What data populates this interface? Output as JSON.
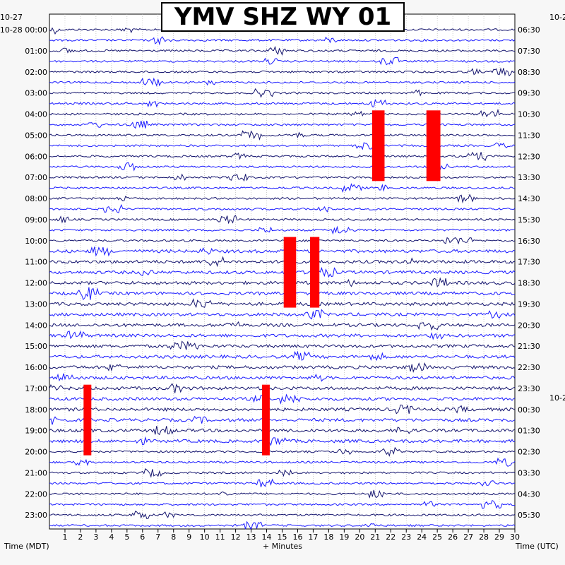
{
  "station_title": "YMV SHZ WY 01",
  "left_edge_label": "10-27",
  "right_edge_label": "10-2",
  "right_date_label": "10-2",
  "x_axis_left_title": "Time (MDT)",
  "x_axis_center_title": "+ Minutes",
  "x_axis_right_title": "Time (UTC)",
  "colors": {
    "trace_dark": "#14146e",
    "trace_blue": "#1a1aff",
    "clipped": "#ff0000",
    "grid": "#b0b0b0",
    "background": "#f7f7f7",
    "plot_bg": "#ffffff"
  },
  "chart_data": {
    "type": "helicorder",
    "title": "YMV SHZ WY 01",
    "xlabel": "+ Minutes",
    "xlim": [
      0,
      30
    ],
    "x_ticks": [
      1,
      2,
      3,
      4,
      5,
      6,
      7,
      8,
      9,
      10,
      11,
      12,
      13,
      14,
      15,
      16,
      17,
      18,
      19,
      20,
      21,
      22,
      23,
      24,
      25,
      26,
      27,
      28,
      29,
      30
    ],
    "row_minutes": 30,
    "row_count": 48,
    "left_time_labels": [
      "10-28 00:00",
      "01:00",
      "02:00",
      "03:00",
      "04:00",
      "05:00",
      "06:00",
      "07:00",
      "08:00",
      "09:00",
      "10:00",
      "11:00",
      "12:00",
      "13:00",
      "14:00",
      "15:00",
      "16:00",
      "17:00",
      "18:00",
      "19:00",
      "20:00",
      "21:00",
      "22:00",
      "23:00"
    ],
    "right_time_labels": [
      "06:30",
      "07:30",
      "08:30",
      "09:30",
      "10:30",
      "11:30",
      "12:30",
      "13:30",
      "14:30",
      "15:30",
      "16:30",
      "17:30",
      "18:30",
      "19:30",
      "20:30",
      "21:30",
      "22:30",
      "23:30",
      "00:30",
      "01:30",
      "02:30",
      "03:30",
      "04:30",
      "05:30"
    ],
    "saturated_events": [
      {
        "row": 11,
        "start_min": 20.8,
        "end_min": 21.6
      },
      {
        "row": 11,
        "start_min": 24.3,
        "end_min": 25.2
      },
      {
        "row": 23,
        "start_min": 15.1,
        "end_min": 15.9
      },
      {
        "row": 23,
        "start_min": 16.8,
        "end_min": 17.4
      },
      {
        "row": 37,
        "start_min": 2.2,
        "end_min": 2.7
      },
      {
        "row": 37,
        "start_min": 13.7,
        "end_min": 14.2
      }
    ]
  }
}
